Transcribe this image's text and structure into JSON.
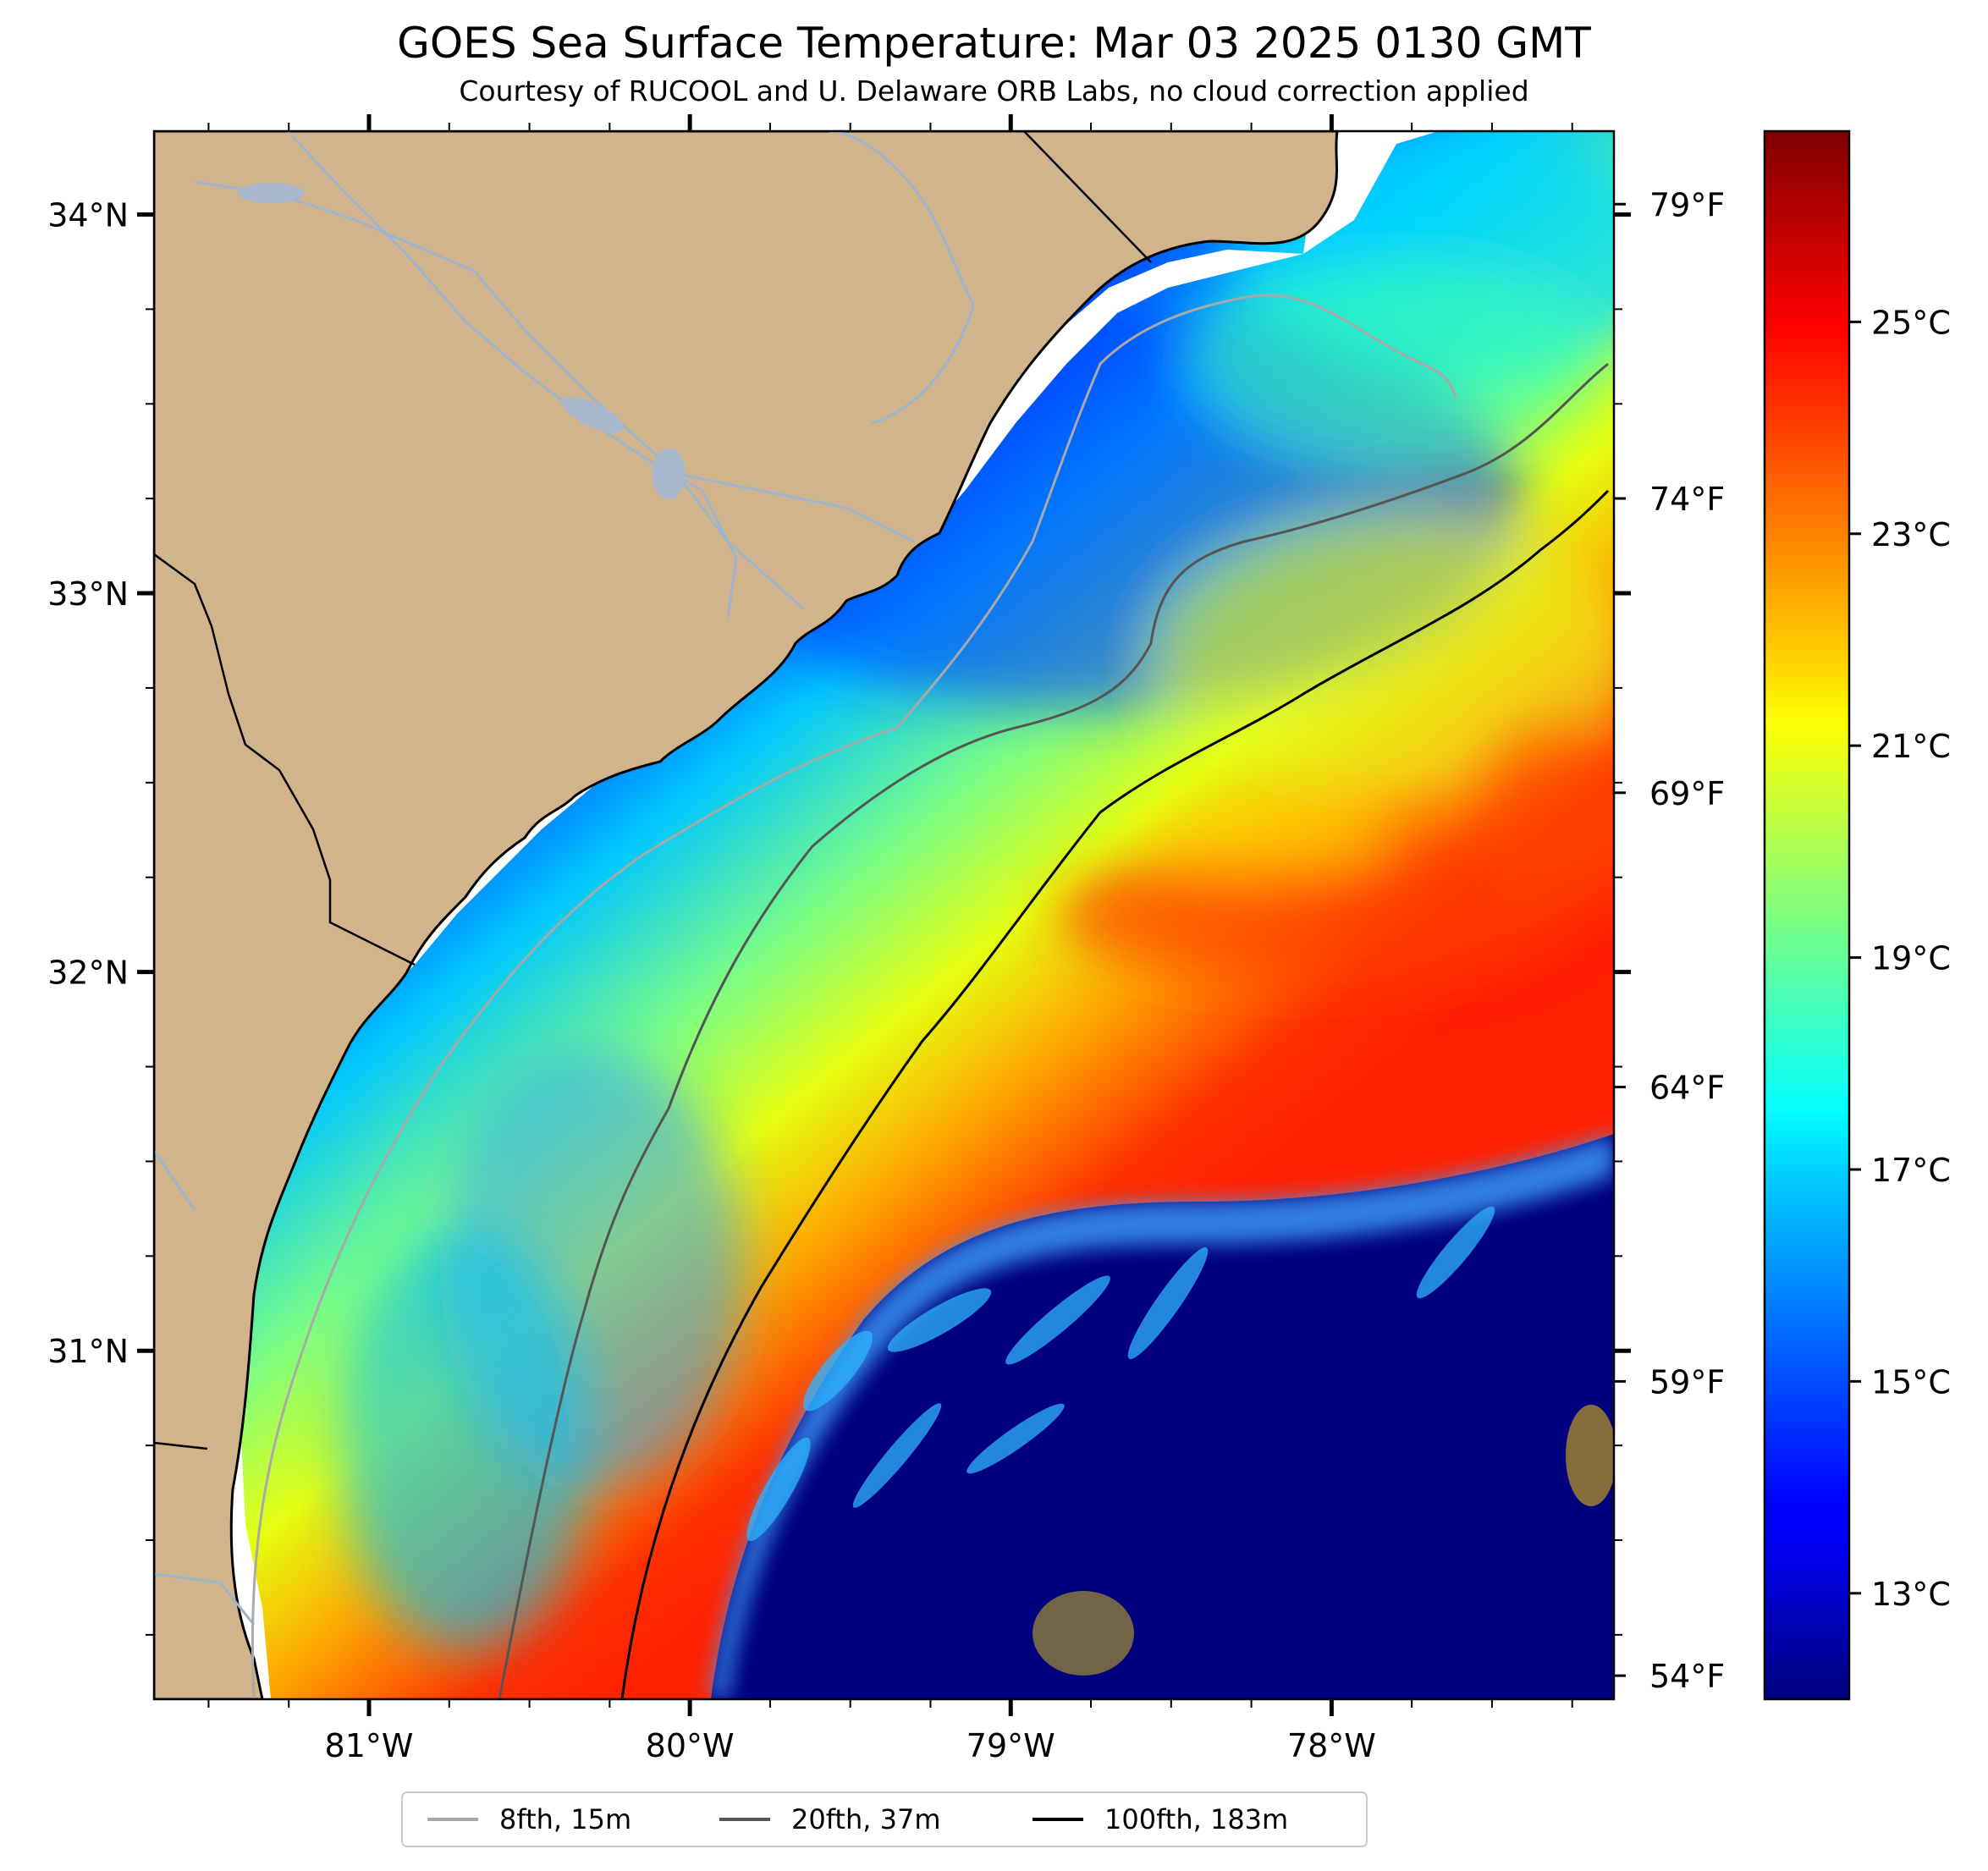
{
  "title": "GOES Sea Surface Temperature: Mar 03 2025 0130 GMT",
  "subtitle": "Courtesy of RUCOOL and U. Delaware ORB Labs, no cloud correction applied",
  "map": {
    "lon_range": [
      -81.67,
      -77.12
    ],
    "lat_range": [
      30.08,
      34.22
    ],
    "lat_ticks": [
      {
        "value": 34,
        "label": "34°N"
      },
      {
        "value": 33,
        "label": "33°N"
      },
      {
        "value": 32,
        "label": "32°N"
      },
      {
        "value": 31,
        "label": "31°N"
      }
    ],
    "lon_ticks": [
      {
        "value": -81,
        "label": "81°W"
      },
      {
        "value": -80,
        "label": "80°W"
      },
      {
        "value": -79,
        "label": "79°W"
      },
      {
        "value": -78,
        "label": "78°W"
      }
    ],
    "land_color": "#d2b48c",
    "river_color": "#9db4cf",
    "cloud_color": "#00007f"
  },
  "colorbar": {
    "cmap": "jet",
    "range_c": [
      12.0,
      26.8
    ],
    "celsius_ticks": [
      {
        "value": 13,
        "label": "13°C"
      },
      {
        "value": 15,
        "label": "15°C"
      },
      {
        "value": 17,
        "label": "17°C"
      },
      {
        "value": 19,
        "label": "19°C"
      },
      {
        "value": 21,
        "label": "21°C"
      },
      {
        "value": 23,
        "label": "23°C"
      },
      {
        "value": 25,
        "label": "25°C"
      }
    ],
    "fahrenheit_ticks": [
      {
        "value": 54,
        "label": "54°F"
      },
      {
        "value": 59,
        "label": "59°F"
      },
      {
        "value": 64,
        "label": "64°F"
      },
      {
        "value": 69,
        "label": "69°F"
      },
      {
        "value": 74,
        "label": "74°F"
      },
      {
        "value": 79,
        "label": "79°F"
      }
    ]
  },
  "legend": {
    "location": "bottom-center",
    "items": [
      {
        "label": "8fth, 15m",
        "color": "#a9a9a9"
      },
      {
        "label": "20fth, 37m",
        "color": "#555555"
      },
      {
        "label": "100fth, 183m",
        "color": "#000000"
      }
    ]
  }
}
